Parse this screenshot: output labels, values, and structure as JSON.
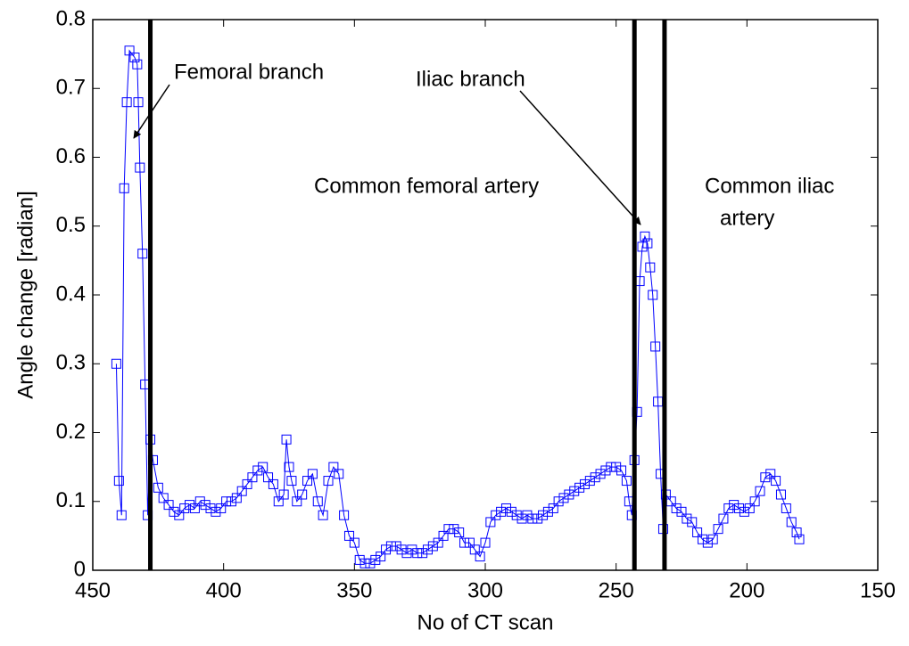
{
  "chart_data": {
    "type": "line",
    "xlabel": "No of CT scan",
    "ylabel": "Angle change [radian]",
    "xlim": [
      450,
      150
    ],
    "ylim": [
      0,
      0.8
    ],
    "xticks": [
      450,
      400,
      350,
      300,
      250,
      200,
      150
    ],
    "yticks": [
      0,
      0.1,
      0.2,
      0.3,
      0.4,
      0.5,
      0.6,
      0.7,
      0.8
    ],
    "vlines": [
      428,
      243,
      231.5
    ],
    "annotations": [
      "Femoral branch",
      "Iliac branch",
      "Common femoral artery",
      "Common iliac",
      "artery"
    ],
    "series": [
      {
        "color": "#0000ff",
        "x": [
          441,
          440,
          439,
          438,
          437,
          436,
          434,
          433,
          432.6,
          432,
          431,
          430,
          429,
          428,
          427,
          425,
          423,
          421,
          419,
          417,
          415,
          413,
          411,
          409,
          407,
          405,
          403,
          401,
          399,
          397,
          395,
          393,
          391,
          389,
          387,
          385,
          383,
          381,
          379,
          377,
          376,
          375,
          374,
          372,
          370,
          368,
          366,
          364,
          362,
          360,
          358,
          356,
          354,
          352,
          350,
          348,
          346,
          344,
          342,
          340,
          338,
          336,
          334,
          332,
          330,
          328,
          326,
          324,
          322,
          320,
          318,
          316,
          314,
          312,
          310,
          308,
          306,
          304,
          302,
          300,
          298,
          296,
          294,
          292,
          290,
          288,
          286,
          284,
          282,
          280,
          278,
          276,
          274,
          272,
          270,
          268,
          266,
          264,
          262,
          260,
          258,
          256,
          254,
          252,
          250,
          248,
          246,
          245,
          244,
          243,
          242,
          241,
          240,
          239,
          238,
          237,
          236,
          235,
          234,
          233,
          232,
          231,
          229,
          227,
          225,
          223,
          221,
          219,
          217,
          215,
          213,
          211,
          209,
          207,
          205,
          203,
          201,
          199,
          197,
          195,
          193,
          191,
          189,
          187,
          185,
          183,
          181,
          180
        ],
        "values": [
          0.3,
          0.13,
          0.08,
          0.555,
          0.68,
          0.755,
          0.745,
          0.735,
          0.68,
          0.585,
          0.46,
          0.27,
          0.08,
          0.19,
          0.16,
          0.12,
          0.105,
          0.095,
          0.085,
          0.08,
          0.09,
          0.095,
          0.09,
          0.1,
          0.095,
          0.09,
          0.085,
          0.09,
          0.1,
          0.1,
          0.105,
          0.115,
          0.125,
          0.135,
          0.145,
          0.15,
          0.135,
          0.125,
          0.1,
          0.11,
          0.19,
          0.15,
          0.13,
          0.1,
          0.11,
          0.13,
          0.14,
          0.1,
          0.08,
          0.13,
          0.15,
          0.14,
          0.08,
          0.05,
          0.04,
          0.015,
          0.01,
          0.01,
          0.015,
          0.02,
          0.03,
          0.035,
          0.035,
          0.03,
          0.025,
          0.03,
          0.025,
          0.025,
          0.03,
          0.035,
          0.04,
          0.05,
          0.06,
          0.06,
          0.055,
          0.04,
          0.04,
          0.03,
          0.02,
          0.04,
          0.07,
          0.08,
          0.085,
          0.09,
          0.085,
          0.08,
          0.075,
          0.08,
          0.075,
          0.075,
          0.08,
          0.085,
          0.09,
          0.1,
          0.105,
          0.11,
          0.115,
          0.12,
          0.125,
          0.13,
          0.135,
          0.14,
          0.145,
          0.15,
          0.15,
          0.145,
          0.13,
          0.1,
          0.08,
          0.16,
          0.23,
          0.42,
          0.47,
          0.485,
          0.475,
          0.44,
          0.4,
          0.325,
          0.245,
          0.14,
          0.06,
          0.11,
          0.1,
          0.09,
          0.085,
          0.075,
          0.07,
          0.055,
          0.045,
          0.04,
          0.045,
          0.06,
          0.075,
          0.09,
          0.095,
          0.09,
          0.085,
          0.09,
          0.1,
          0.115,
          0.135,
          0.14,
          0.13,
          0.11,
          0.09,
          0.07,
          0.055,
          0.045
        ]
      }
    ]
  }
}
